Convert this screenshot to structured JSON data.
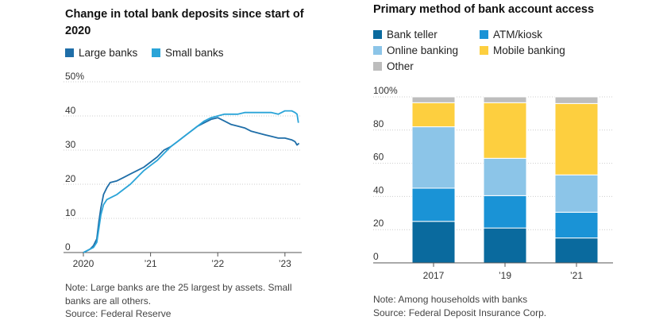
{
  "colors": {
    "large": "#1f6ea8",
    "small": "#2aa4d8",
    "bank_teller": "#0a6a9e",
    "atm_kiosk": "#1a93d6",
    "online_banking": "#8cc5e8",
    "mobile_banking": "#fdcf3f",
    "other": "#bdbdbd",
    "grid": "#cccccc",
    "axis": "#555555"
  },
  "left": {
    "note_lines": [
      "Note: Large banks are the 25 largest by assets. Small",
      "banks are all others."
    ],
    "source": "Source: Federal Reserve"
  },
  "right": {
    "note": "Note: Among households with banks",
    "source": "Source: Federal Deposit Insurance Corp."
  },
  "chart_data": [
    {
      "type": "line",
      "title": "Change in total bank deposits since start of 2020",
      "title_lines": [
        "Change in total bank deposits since start of",
        "2020"
      ],
      "xlabel": "",
      "ylabel": "",
      "xlim": [
        2020.0,
        2023.25
      ],
      "ylim": [
        0,
        50
      ],
      "y_ticks": [
        0,
        10,
        20,
        30,
        40,
        50
      ],
      "y_tick_labels": [
        "0",
        "10",
        "20",
        "30",
        "40",
        "50%"
      ],
      "x_ticks": [
        2020,
        2021,
        2022,
        2023
      ],
      "x_tick_labels": [
        "2020",
        "’21",
        "’22",
        "’23"
      ],
      "legend": [
        "Large banks",
        "Small banks"
      ],
      "legend_position": "top-left",
      "grid": true,
      "series": [
        {
          "name": "Large banks",
          "x": [
            2020.0,
            2020.05,
            2020.1,
            2020.15,
            2020.2,
            2020.23,
            2020.26,
            2020.3,
            2020.35,
            2020.4,
            2020.5,
            2020.6,
            2020.7,
            2020.8,
            2020.9,
            2021.0,
            2021.1,
            2021.2,
            2021.3,
            2021.4,
            2021.5,
            2021.6,
            2021.7,
            2021.8,
            2021.9,
            2022.0,
            2022.1,
            2022.2,
            2022.3,
            2022.4,
            2022.5,
            2022.6,
            2022.7,
            2022.8,
            2022.9,
            2023.0,
            2023.1,
            2023.15,
            2023.18,
            2023.21
          ],
          "values": [
            0,
            0.5,
            1,
            2,
            4,
            9,
            13,
            17,
            19,
            20.5,
            21,
            22,
            23,
            24,
            25,
            26.5,
            28,
            30,
            31,
            32.5,
            34,
            35.5,
            37,
            38,
            39,
            39.5,
            38.5,
            37.5,
            37,
            36.5,
            35.5,
            35,
            34.5,
            34,
            33.5,
            33.5,
            33,
            32.5,
            31.5,
            32
          ]
        },
        {
          "name": "Small banks",
          "x": [
            2020.0,
            2020.05,
            2020.1,
            2020.15,
            2020.2,
            2020.23,
            2020.26,
            2020.3,
            2020.35,
            2020.4,
            2020.5,
            2020.6,
            2020.7,
            2020.8,
            2020.9,
            2021.0,
            2021.1,
            2021.2,
            2021.3,
            2021.4,
            2021.5,
            2021.6,
            2021.7,
            2021.8,
            2021.9,
            2022.0,
            2022.1,
            2022.2,
            2022.3,
            2022.4,
            2022.5,
            2022.6,
            2022.7,
            2022.8,
            2022.9,
            2023.0,
            2023.1,
            2023.15,
            2023.18,
            2023.2
          ],
          "values": [
            0,
            0.5,
            1,
            1.5,
            3,
            7,
            11,
            14,
            15.5,
            16,
            17,
            18.5,
            20,
            22,
            24,
            25.5,
            27,
            29,
            31,
            32.5,
            34,
            35.5,
            37,
            38.5,
            39.5,
            40,
            40.5,
            40.5,
            40.5,
            41,
            41,
            41,
            41,
            41,
            40.5,
            41.5,
            41.5,
            41,
            40.5,
            38
          ]
        }
      ]
    },
    {
      "type": "bar",
      "stacked": true,
      "title": "Primary method of bank account access",
      "categories": [
        "2017",
        "’19",
        "’21"
      ],
      "ylim": [
        0,
        100
      ],
      "y_ticks": [
        0,
        20,
        40,
        60,
        80,
        100
      ],
      "y_tick_labels": [
        "0",
        "20",
        "40",
        "60",
        "80",
        "100%"
      ],
      "legend_position": "top",
      "grid": true,
      "series": [
        {
          "name": "Bank teller",
          "color_key": "bank_teller",
          "values": [
            25,
            21,
            15
          ]
        },
        {
          "name": "ATM/kiosk",
          "color_key": "atm_kiosk",
          "values": [
            20,
            19.5,
            15.5
          ]
        },
        {
          "name": "Online banking",
          "color_key": "online_banking",
          "values": [
            37,
            22.5,
            22.5
          ]
        },
        {
          "name": "Mobile banking",
          "color_key": "mobile_banking",
          "values": [
            14.5,
            33.5,
            43
          ]
        },
        {
          "name": "Other",
          "color_key": "other",
          "values": [
            3.5,
            3.5,
            4
          ]
        }
      ]
    }
  ]
}
